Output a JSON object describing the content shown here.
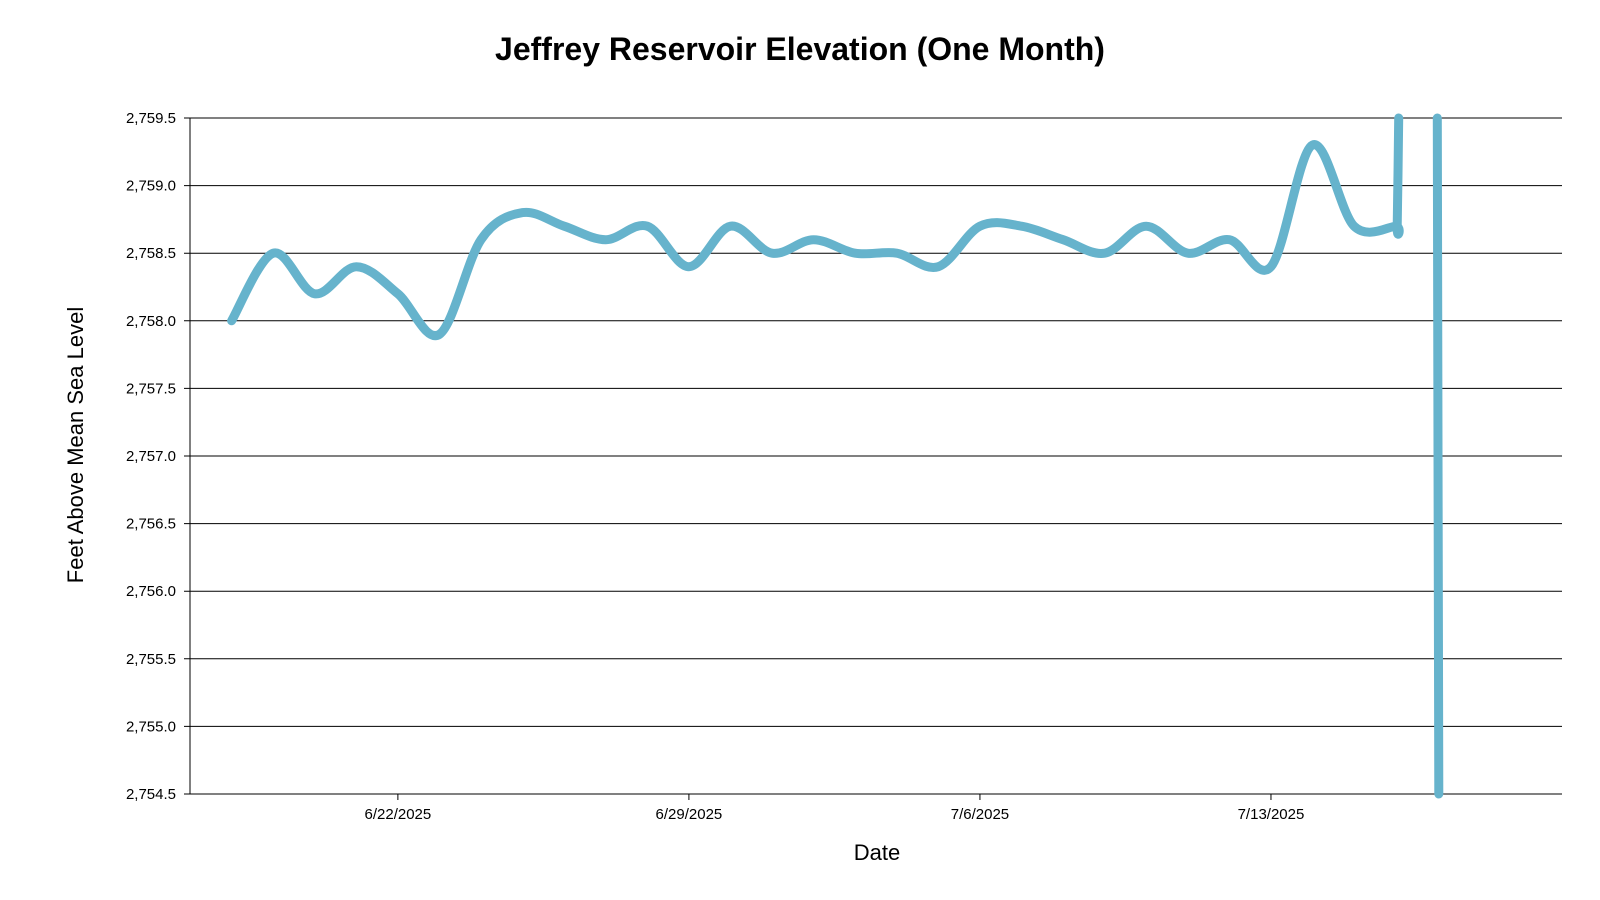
{
  "chart_data": {
    "type": "line",
    "title": "Jeffrey Reservoir Elevation (One Month)",
    "xlabel": "Date",
    "ylabel": "Feet Above Mean Sea Level",
    "ylim": [
      2754.5,
      2759.5
    ],
    "xlim": [
      "2025-06-17",
      "2025-07-20"
    ],
    "y_ticks": [
      "2,754.5",
      "2,755.0",
      "2,755.5",
      "2,756.0",
      "2,756.5",
      "2,757.0",
      "2,757.5",
      "2,758.0",
      "2,758.5",
      "2,759.0",
      "2,759.5"
    ],
    "y_tick_values": [
      2754.5,
      2755.0,
      2755.5,
      2756.0,
      2756.5,
      2757.0,
      2757.5,
      2758.0,
      2758.5,
      2759.0,
      2759.5
    ],
    "x_ticks": [
      "6/22/2025",
      "6/29/2025",
      "7/6/2025",
      "7/13/2025"
    ],
    "x_tick_values": [
      "2025-06-22",
      "2025-06-29",
      "2025-07-06",
      "2025-07-13"
    ],
    "grid": true,
    "legend": "none",
    "color": "#66b3cc",
    "series": [
      {
        "x": [
          "2025-06-18",
          "2025-06-19",
          "2025-06-20",
          "2025-06-21",
          "2025-06-22",
          "2025-06-23",
          "2025-06-24",
          "2025-06-25",
          "2025-06-26",
          "2025-06-27",
          "2025-06-28",
          "2025-06-29",
          "2025-06-30",
          "2025-07-01",
          "2025-07-02",
          "2025-07-03",
          "2025-07-04",
          "2025-07-05",
          "2025-07-06",
          "2025-07-07",
          "2025-07-08",
          "2025-07-09",
          "2025-07-10",
          "2025-07-11",
          "2025-07-12",
          "2025-07-13",
          "2025-07-14",
          "2025-07-15",
          "2025-07-16",
          "2025-07-16",
          "2025-07-16"
        ],
        "values": [
          2758.0,
          2758.5,
          2758.2,
          2758.4,
          2758.2,
          2757.9,
          2758.6,
          2758.8,
          2758.7,
          2758.6,
          2758.7,
          2758.4,
          2758.7,
          2758.5,
          2758.6,
          2758.5,
          2758.5,
          2758.4,
          2758.7,
          2758.7,
          2758.6,
          2758.5,
          2758.7,
          2758.5,
          2758.6,
          2758.4,
          2759.3,
          2758.7,
          2758.7,
          2758.7,
          2759.5
        ]
      },
      {
        "x": [
          "2025-07-17",
          "2025-07-17"
        ],
        "values": [
          2759.5,
          2754.5
        ]
      }
    ]
  }
}
